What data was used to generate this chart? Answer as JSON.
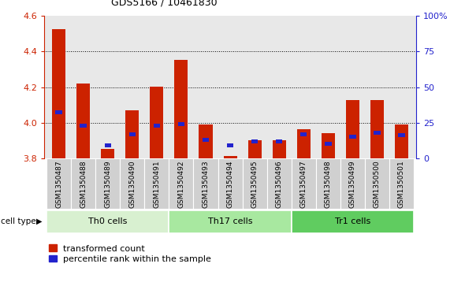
{
  "title": "GDS5166 / 10461830",
  "samples": [
    "GSM1350487",
    "GSM1350488",
    "GSM1350489",
    "GSM1350490",
    "GSM1350491",
    "GSM1350492",
    "GSM1350493",
    "GSM1350494",
    "GSM1350495",
    "GSM1350496",
    "GSM1350497",
    "GSM1350498",
    "GSM1350499",
    "GSM1350500",
    "GSM1350501"
  ],
  "red_values": [
    4.525,
    4.22,
    3.855,
    4.07,
    4.205,
    4.355,
    3.99,
    3.815,
    3.905,
    3.905,
    3.965,
    3.945,
    4.13,
    4.13,
    3.99
  ],
  "blue_values": [
    4.06,
    3.985,
    3.875,
    3.935,
    3.985,
    3.995,
    3.905,
    3.875,
    3.895,
    3.895,
    3.935,
    3.885,
    3.925,
    3.945,
    3.93
  ],
  "ylim": [
    3.8,
    4.6
  ],
  "yticks": [
    3.8,
    4.0,
    4.2,
    4.4,
    4.6
  ],
  "right_yticks": [
    0,
    25,
    50,
    75,
    100
  ],
  "right_ylabels": [
    "0",
    "25",
    "50",
    "75",
    "100%"
  ],
  "cell_groups": [
    {
      "label": "Th0 cells",
      "start": 0,
      "end": 5
    },
    {
      "label": "Th17 cells",
      "start": 5,
      "end": 10
    },
    {
      "label": "Tr1 cells",
      "start": 10,
      "end": 15
    }
  ],
  "group_colors": [
    "#d8f0d0",
    "#a8e8a0",
    "#60cc60"
  ],
  "bar_color": "#cc2200",
  "blue_color": "#2222cc",
  "bar_width": 0.55,
  "plot_bg": "#e8e8e8",
  "xtick_bg": "#d0d0d0",
  "legend_red_label": "transformed count",
  "legend_blue_label": "percentile rank within the sample",
  "cell_type_label": "cell type",
  "yaxis_color": "#cc2200",
  "right_yaxis_color": "#2222cc",
  "grid_lines": [
    4.0,
    4.2,
    4.4
  ]
}
